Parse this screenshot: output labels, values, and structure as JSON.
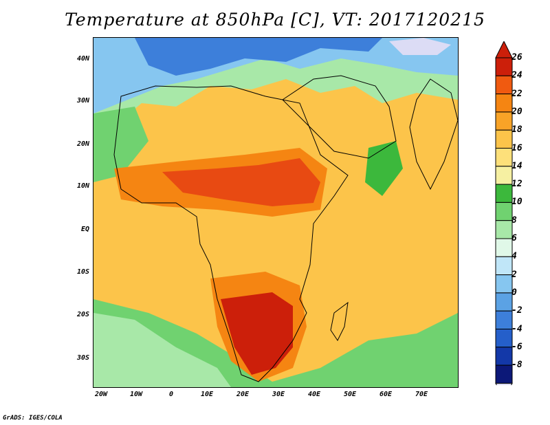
{
  "title": "Temperature at 850hPa [C], VT: 2017120215",
  "credit": "GrADS: IGES/COLA",
  "lat_labels": [
    "40N",
    "30N",
    "20N",
    "10N",
    "EQ",
    "10S",
    "20S",
    "30S"
  ],
  "lon_labels": [
    "20W",
    "10W",
    "0",
    "10E",
    "20E",
    "30E",
    "40E",
    "50E",
    "60E",
    "70E"
  ],
  "colorbar": {
    "labels": [
      "26",
      "24",
      "22",
      "20",
      "18",
      "16",
      "14",
      "12",
      "10",
      "8",
      "6",
      "4",
      "2",
      "0",
      "-2",
      "-4",
      "-6",
      "-8"
    ],
    "colors": [
      "#cc1f0a",
      "#f05a10",
      "#f58512",
      "#f8a327",
      "#fcc44a",
      "#fde07a",
      "#f6f0a2",
      "#3cb83c",
      "#70d270",
      "#a8e8a8",
      "#e0f8e8",
      "#c0e6f8",
      "#86c6f0",
      "#5ba2e4",
      "#3d7fda",
      "#255fca",
      "#1338a8",
      "#0c1878"
    ]
  },
  "map_colors": {
    "hot": "#cc1f0a",
    "very_warm": "#e84a12",
    "warm": "#f58512",
    "mild": "#f8a327",
    "pale": "#fcc44a",
    "cream": "#fde07a",
    "lightgreen": "#70d270",
    "green": "#3cb83c",
    "cyan": "#a8e8a8",
    "lightblue": "#86c6f0",
    "blue": "#3d7fda",
    "darkblue": "#1338a8"
  }
}
